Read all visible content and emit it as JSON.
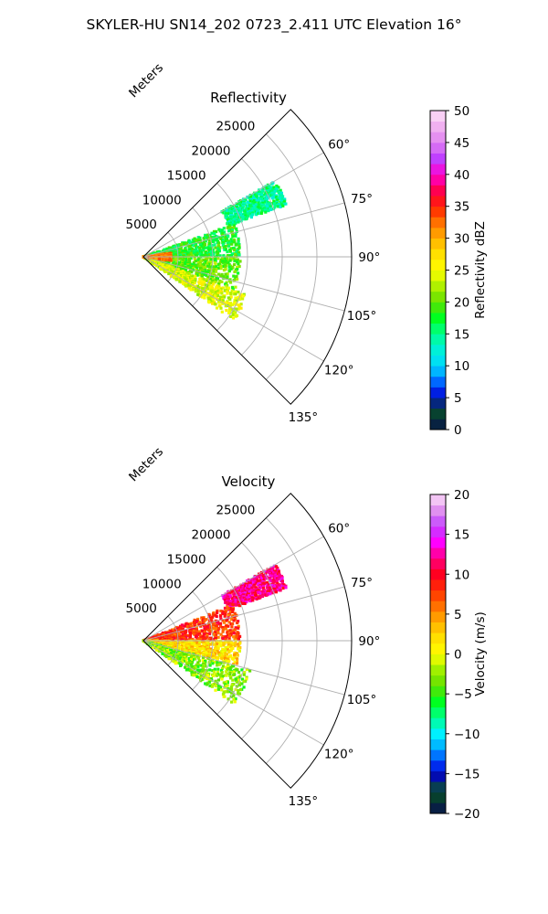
{
  "figure": {
    "suptitle": "SKYLER-HU  SN14_202  0723_2.411 UTC Elevation 16°"
  },
  "chart_data": [
    {
      "type": "heatmap",
      "projection": "polar-sector",
      "title": "Reflectivity",
      "radial_label": "Meters",
      "theta_range_deg": [
        45,
        135
      ],
      "r_range": [
        0,
        30000
      ],
      "r_ticks": [
        5000,
        10000,
        15000,
        20000,
        25000
      ],
      "r_tick_labels": [
        "5000",
        "10000",
        "15000",
        "20000",
        "25000"
      ],
      "theta_ticks_deg": [
        60,
        75,
        90,
        105,
        120,
        135
      ],
      "theta_tick_labels": [
        "60°",
        "75°",
        "90°",
        "105°",
        "120°",
        "135°"
      ],
      "grid": true,
      "colorbar": {
        "label": "Reflectivity dBZ",
        "range": [
          0,
          50
        ],
        "ticks": [
          0,
          5,
          10,
          15,
          20,
          25,
          30,
          35,
          40,
          45,
          50
        ],
        "tick_labels": [
          "0",
          "5",
          "10",
          "15",
          "20",
          "25",
          "30",
          "35",
          "40",
          "45",
          "50"
        ]
      },
      "field_approx": [
        {
          "theta_deg": [
            60,
            70
          ],
          "r": [
            13000,
            22000
          ],
          "value": 15
        },
        {
          "theta_deg": [
            70,
            90
          ],
          "r": [
            0,
            14000
          ],
          "value": 18
        },
        {
          "theta_deg": [
            90,
            110
          ],
          "r": [
            0,
            14000
          ],
          "value": 20
        },
        {
          "theta_deg": [
            110,
            125
          ],
          "r": [
            0,
            16000
          ],
          "value": 24
        },
        {
          "theta_deg": [
            82,
            98
          ],
          "r": [
            0,
            4000
          ],
          "value": 32
        }
      ]
    },
    {
      "type": "heatmap",
      "projection": "polar-sector",
      "title": "Velocity",
      "radial_label": "Meters",
      "theta_range_deg": [
        45,
        135
      ],
      "r_range": [
        0,
        30000
      ],
      "r_ticks": [
        5000,
        10000,
        15000,
        20000,
        25000
      ],
      "r_tick_labels": [
        "5000",
        "10000",
        "15000",
        "20000",
        "25000"
      ],
      "theta_ticks_deg": [
        60,
        75,
        90,
        105,
        120,
        135
      ],
      "theta_tick_labels": [
        "60°",
        "75°",
        "90°",
        "105°",
        "120°",
        "135°"
      ],
      "grid": true,
      "colorbar": {
        "label": "Velocity (m/s)",
        "range": [
          -20,
          20
        ],
        "ticks": [
          -20,
          -15,
          -10,
          -5,
          0,
          5,
          10,
          15,
          20
        ],
        "tick_labels": [
          "−20",
          "−15",
          "−10",
          "−5",
          "0",
          "5",
          "10",
          "15",
          "20"
        ]
      },
      "field_approx": [
        {
          "theta_deg": [
            60,
            70
          ],
          "r": [
            13000,
            22000
          ],
          "value": 12
        },
        {
          "theta_deg": [
            68,
            90
          ],
          "r": [
            0,
            14000
          ],
          "value": 8
        },
        {
          "theta_deg": [
            90,
            105
          ],
          "r": [
            0,
            14000
          ],
          "value": 2
        },
        {
          "theta_deg": [
            105,
            125
          ],
          "r": [
            0,
            16000
          ],
          "value": -3
        }
      ]
    }
  ],
  "colors": {
    "grid": "#b0b0b0",
    "axes": "#000000"
  },
  "colormaps": {
    "Reflectivity dBZ": [
      {
        "v": 0,
        "c": "#0a0a5a"
      },
      {
        "v": 1.7,
        "c": "#063a28"
      },
      {
        "v": 3.4,
        "c": "#0a4a3a"
      },
      {
        "v": 5,
        "c": "#0000c8"
      },
      {
        "v": 6.7,
        "c": "#0040ff"
      },
      {
        "v": 8.3,
        "c": "#0090ff"
      },
      {
        "v": 10,
        "c": "#00d8ff"
      },
      {
        "v": 12.5,
        "c": "#00f0d8"
      },
      {
        "v": 15,
        "c": "#00ff90"
      },
      {
        "v": 17.5,
        "c": "#00ff20"
      },
      {
        "v": 20,
        "c": "#60e000"
      },
      {
        "v": 22.5,
        "c": "#b0f000"
      },
      {
        "v": 25,
        "c": "#ffff00"
      },
      {
        "v": 27.5,
        "c": "#ffe000"
      },
      {
        "v": 30,
        "c": "#ffb000"
      },
      {
        "v": 32.5,
        "c": "#ff7000"
      },
      {
        "v": 35,
        "c": "#ff2000"
      },
      {
        "v": 37.5,
        "c": "#ff0050"
      },
      {
        "v": 40,
        "c": "#ff00d0"
      },
      {
        "v": 42.5,
        "c": "#c040ff"
      },
      {
        "v": 45,
        "c": "#e080f0"
      },
      {
        "v": 47.5,
        "c": "#f0b0f0"
      },
      {
        "v": 50,
        "c": "#fde0f8"
      }
    ],
    "Velocity (m/s)": [
      {
        "v": -20,
        "c": "#0a0a5a"
      },
      {
        "v": -18.5,
        "c": "#063a28"
      },
      {
        "v": -17,
        "c": "#0a4a3a"
      },
      {
        "v": -15,
        "c": "#0000c8"
      },
      {
        "v": -13.5,
        "c": "#0040ff"
      },
      {
        "v": -12,
        "c": "#00a0ff"
      },
      {
        "v": -10,
        "c": "#00f0ff"
      },
      {
        "v": -8,
        "c": "#00ff90"
      },
      {
        "v": -6,
        "c": "#00ff20"
      },
      {
        "v": -4,
        "c": "#60e000"
      },
      {
        "v": -2,
        "c": "#a0f000"
      },
      {
        "v": 0,
        "c": "#ffff00"
      },
      {
        "v": 2,
        "c": "#ffe000"
      },
      {
        "v": 4,
        "c": "#ffb000"
      },
      {
        "v": 6,
        "c": "#ff7000"
      },
      {
        "v": 8,
        "c": "#ff3000"
      },
      {
        "v": 10,
        "c": "#ff0020"
      },
      {
        "v": 12,
        "c": "#ff0080"
      },
      {
        "v": 14,
        "c": "#ff00ff"
      },
      {
        "v": 16,
        "c": "#c040ff"
      },
      {
        "v": 18,
        "c": "#e090f0"
      },
      {
        "v": 20,
        "c": "#fde0f8"
      }
    ]
  }
}
